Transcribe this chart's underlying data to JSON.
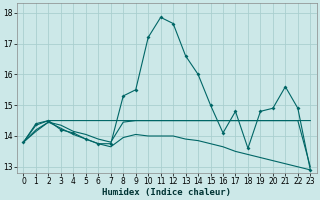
{
  "xlabel": "Humidex (Indice chaleur)",
  "background_color": "#cce8e8",
  "grid_color": "#aacfcf",
  "line_color": "#006666",
  "xlim": [
    -0.5,
    23.5
  ],
  "ylim": [
    12.8,
    18.3
  ],
  "yticks": [
    13,
    14,
    15,
    16,
    17,
    18
  ],
  "xticks": [
    0,
    1,
    2,
    3,
    4,
    5,
    6,
    7,
    8,
    9,
    10,
    11,
    12,
    13,
    14,
    15,
    16,
    17,
    18,
    19,
    20,
    21,
    22,
    23
  ],
  "line1_y": [
    13.8,
    14.4,
    14.5,
    14.2,
    14.1,
    13.9,
    13.75,
    13.75,
    15.3,
    15.5,
    17.2,
    17.85,
    17.65,
    16.6,
    16.0,
    15.0,
    14.1,
    14.8,
    13.6,
    14.8,
    14.9,
    15.6,
    14.9,
    12.9
  ],
  "line2_y": [
    13.8,
    14.35,
    14.5,
    14.5,
    14.5,
    14.5,
    14.5,
    14.5,
    14.5,
    14.5,
    14.5,
    14.5,
    14.5,
    14.5,
    14.5,
    14.5,
    14.5,
    14.5,
    14.5,
    14.5,
    14.5,
    14.5,
    14.5,
    14.5
  ],
  "line3_y": [
    13.8,
    14.15,
    14.45,
    14.35,
    14.15,
    14.05,
    13.9,
    13.8,
    14.45,
    14.5,
    14.5,
    14.5,
    14.5,
    14.5,
    14.5,
    14.5,
    14.5,
    14.5,
    14.5,
    14.5,
    14.5,
    14.5,
    14.5,
    13.0
  ],
  "line4_y": [
    13.8,
    14.2,
    14.45,
    14.25,
    14.05,
    13.9,
    13.75,
    13.65,
    13.95,
    14.05,
    14.0,
    14.0,
    14.0,
    13.9,
    13.85,
    13.75,
    13.65,
    13.5,
    13.4,
    13.3,
    13.2,
    13.1,
    13.0,
    12.9
  ]
}
